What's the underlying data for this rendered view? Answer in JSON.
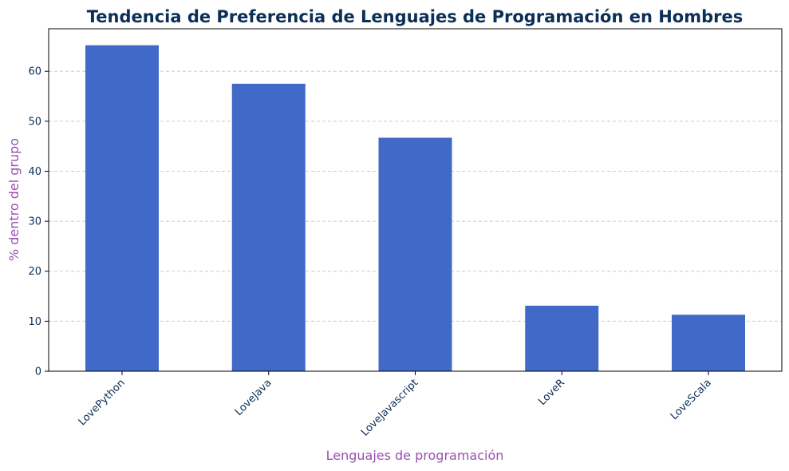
{
  "chart_data": {
    "type": "bar",
    "title": "Tendencia de Preferencia de Lenguajes de Programación en Hombres",
    "xlabel": "Lenguajes de programación",
    "ylabel": "% dentro del grupo",
    "categories": [
      "LovePython",
      "LoveJava",
      "LoveJavascript",
      "LoveR",
      "LoveScala"
    ],
    "values": [
      65.2,
      57.5,
      46.7,
      13.1,
      11.3
    ],
    "ylim": [
      0,
      68.5
    ],
    "yticks": [
      "0",
      "10",
      "20",
      "30",
      "40",
      "50",
      "60"
    ],
    "grid": "y-dashed",
    "legend": "none",
    "colors": {
      "bar": "#4169c8",
      "title": "#0b2f57",
      "axis_label": "#9b4fb0",
      "tick_label": "#0b2f57",
      "grid": "#cccccc"
    }
  }
}
